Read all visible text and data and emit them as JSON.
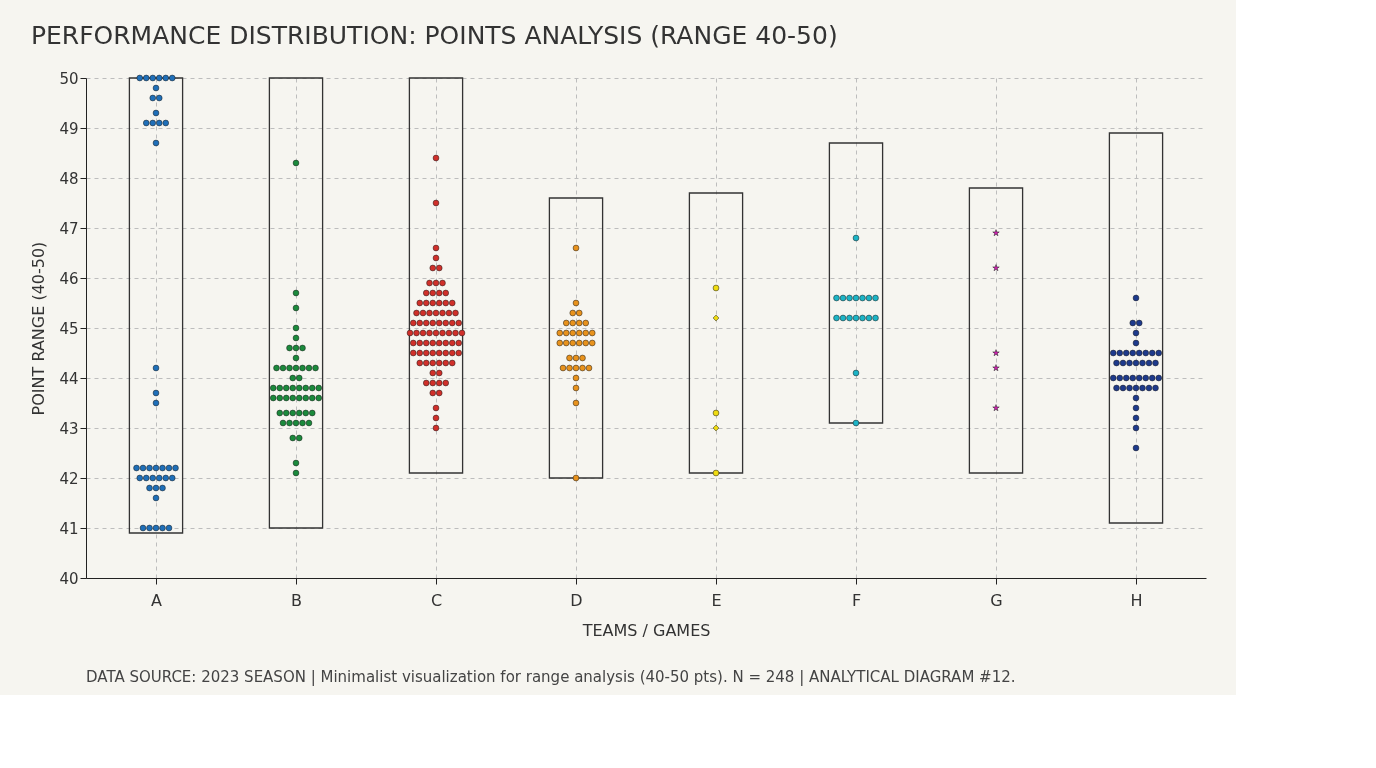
{
  "chart_data": {
    "type": "scatter",
    "title": "PERFORMANCE DISTRIBUTION: POINTS ANALYSIS (RANGE 40-50)",
    "xlabel": "TEAMS / GAMES",
    "ylabel": "POINT RANGE (40-50)",
    "categories": [
      "A",
      "B",
      "C",
      "D",
      "E",
      "F",
      "G",
      "H"
    ],
    "ylim": [
      40,
      50
    ],
    "yticks": [
      40,
      41,
      42,
      43,
      44,
      45,
      46,
      47,
      48,
      49,
      50
    ],
    "grid": true,
    "marker": "circle",
    "series": [
      {
        "type": "bar",
        "color": "#333333",
        "base": [
          40.9,
          41.0,
          42.1,
          42.0,
          42.1,
          43.1,
          42.1,
          41.1
        ],
        "values": [
          9.1,
          9.0,
          7.9,
          5.6,
          5.6,
          5.6,
          5.7,
          7.8
        ]
      },
      {
        "color": "#1f6fb8",
        "x": [
          "A",
          "A",
          "A",
          "A",
          "A",
          "A",
          "A",
          "A",
          "A",
          "A",
          "A",
          "A",
          "A",
          "A",
          "A",
          "A",
          "A",
          "A",
          "A",
          "A",
          "A",
          "A",
          "A",
          "A",
          "A",
          "A",
          "A",
          "A",
          "A",
          "A",
          "A",
          "A",
          "A",
          "A",
          "A",
          "A",
          "A",
          "A",
          "A",
          "A"
        ],
        "values": [
          50.0,
          50.0,
          50.0,
          50.0,
          50.0,
          50.0,
          49.8,
          49.6,
          49.6,
          49.3,
          49.1,
          49.1,
          49.1,
          49.1,
          48.7,
          44.2,
          43.7,
          43.5,
          42.2,
          42.2,
          42.2,
          42.2,
          42.2,
          42.2,
          42.2,
          42.0,
          42.0,
          42.0,
          42.0,
          42.0,
          42.0,
          41.8,
          41.8,
          41.8,
          41.6,
          41.0,
          41.0,
          41.0,
          41.0,
          41.0
        ]
      },
      {
        "color": "#1b8a3c",
        "x": [
          "B",
          "B",
          "B",
          "B",
          "B",
          "B",
          "B",
          "B",
          "B",
          "B",
          "B",
          "B",
          "B",
          "B",
          "B",
          "B",
          "B",
          "B",
          "B",
          "B",
          "B",
          "B",
          "B",
          "B",
          "B",
          "B",
          "B",
          "B",
          "B",
          "B",
          "B",
          "B",
          "B",
          "B",
          "B",
          "B",
          "B",
          "B",
          "B",
          "B",
          "B",
          "B",
          "B",
          "B",
          "B",
          "B",
          "B",
          "B",
          "B"
        ],
        "values": [
          48.3,
          45.7,
          45.4,
          45.0,
          44.8,
          44.6,
          44.6,
          44.6,
          44.4,
          44.2,
          44.2,
          44.2,
          44.2,
          44.2,
          44.2,
          44.2,
          44.0,
          44.0,
          43.8,
          43.8,
          43.8,
          43.8,
          43.8,
          43.8,
          43.8,
          43.8,
          43.6,
          43.6,
          43.6,
          43.6,
          43.6,
          43.6,
          43.6,
          43.6,
          43.3,
          43.3,
          43.3,
          43.3,
          43.3,
          43.3,
          43.1,
          43.1,
          43.1,
          43.1,
          43.1,
          42.8,
          42.8,
          42.3,
          42.1
        ]
      },
      {
        "color": "#d0302a",
        "x": [
          "C",
          "C",
          "C",
          "C",
          "C",
          "C",
          "C",
          "C",
          "C",
          "C",
          "C",
          "C",
          "C",
          "C",
          "C",
          "C",
          "C",
          "C",
          "C",
          "C",
          "C",
          "C",
          "C",
          "C",
          "C",
          "C",
          "C",
          "C",
          "C",
          "C",
          "C",
          "C",
          "C",
          "C",
          "C",
          "C",
          "C",
          "C",
          "C",
          "C",
          "C",
          "C",
          "C",
          "C",
          "C",
          "C",
          "C",
          "C",
          "C",
          "C",
          "C",
          "C",
          "C",
          "C",
          "C",
          "C",
          "C",
          "C",
          "C",
          "C",
          "C",
          "C",
          "C",
          "C",
          "C",
          "C",
          "C",
          "C",
          "C",
          "C",
          "C",
          "C",
          "C",
          "C",
          "C",
          "C"
        ],
        "values": [
          48.4,
          47.5,
          46.6,
          46.4,
          46.2,
          46.2,
          45.9,
          45.9,
          45.9,
          45.7,
          45.7,
          45.7,
          45.7,
          45.5,
          45.5,
          45.5,
          45.5,
          45.5,
          45.5,
          45.3,
          45.3,
          45.3,
          45.3,
          45.3,
          45.3,
          45.3,
          45.1,
          45.1,
          45.1,
          45.1,
          45.1,
          45.1,
          45.1,
          45.1,
          44.9,
          44.9,
          44.9,
          44.9,
          44.9,
          44.9,
          44.9,
          44.9,
          44.9,
          44.7,
          44.7,
          44.7,
          44.7,
          44.7,
          44.7,
          44.7,
          44.7,
          44.5,
          44.5,
          44.5,
          44.5,
          44.5,
          44.5,
          44.5,
          44.5,
          44.3,
          44.3,
          44.3,
          44.3,
          44.3,
          44.3,
          44.1,
          44.1,
          43.9,
          43.9,
          43.9,
          43.9,
          43.7,
          43.7,
          43.4,
          43.2,
          43.0
        ]
      },
      {
        "color": "#e8921c",
        "x": [
          "D",
          "D",
          "D",
          "D",
          "D",
          "D",
          "D",
          "D",
          "D",
          "D",
          "D",
          "D",
          "D",
          "D",
          "D",
          "D",
          "D",
          "D",
          "D",
          "D",
          "D",
          "D",
          "D",
          "D",
          "D",
          "D",
          "D",
          "D",
          "D",
          "D",
          "D",
          "D"
        ],
        "values": [
          46.6,
          45.5,
          45.3,
          45.3,
          45.1,
          45.1,
          45.1,
          45.1,
          44.9,
          44.9,
          44.9,
          44.9,
          44.9,
          44.9,
          44.7,
          44.7,
          44.7,
          44.7,
          44.7,
          44.7,
          44.4,
          44.4,
          44.4,
          44.2,
          44.2,
          44.2,
          44.2,
          44.2,
          44.0,
          43.8,
          43.5,
          42.0
        ]
      },
      {
        "color": "#f0dc10",
        "x": [
          "E",
          "E",
          "E"
        ],
        "values": [
          45.8,
          43.3,
          42.1
        ]
      },
      {
        "color": "#f0dc10",
        "marker": "diamond",
        "x": [
          "E",
          "E"
        ],
        "values": [
          45.2,
          43.0
        ]
      },
      {
        "color": "#1cb4c6",
        "x": [
          "F",
          "F",
          "F",
          "F",
          "F",
          "F",
          "F",
          "F",
          "F",
          "F",
          "F",
          "F",
          "F",
          "F",
          "F",
          "F",
          "F"
        ],
        "values": [
          46.8,
          45.6,
          45.6,
          45.6,
          45.6,
          45.6,
          45.6,
          45.6,
          45.2,
          45.2,
          45.2,
          45.2,
          45.2,
          45.2,
          45.2,
          44.1,
          43.1
        ]
      },
      {
        "color": "#d020b0",
        "marker": "star",
        "x": [
          "G",
          "G",
          "G",
          "G",
          "G"
        ],
        "values": [
          46.9,
          46.2,
          44.5,
          44.2,
          43.4
        ]
      },
      {
        "color": "#1e3a8c",
        "x": [
          "H",
          "H",
          "H",
          "H",
          "H",
          "H",
          "H",
          "H",
          "H",
          "H",
          "H",
          "H",
          "H",
          "H",
          "H",
          "H",
          "H",
          "H",
          "H",
          "H",
          "H",
          "H",
          "H",
          "H",
          "H",
          "H",
          "H",
          "H",
          "H",
          "H",
          "H",
          "H",
          "H",
          "H",
          "H",
          "H",
          "H",
          "H",
          "H",
          "H"
        ],
        "values": [
          45.6,
          45.1,
          45.1,
          44.9,
          44.7,
          44.5,
          44.5,
          44.5,
          44.5,
          44.5,
          44.5,
          44.5,
          44.5,
          44.3,
          44.3,
          44.3,
          44.3,
          44.3,
          44.3,
          44.3,
          44.0,
          44.0,
          44.0,
          44.0,
          44.0,
          44.0,
          44.0,
          44.0,
          43.8,
          43.8,
          43.8,
          43.8,
          43.8,
          43.8,
          43.8,
          43.6,
          43.4,
          43.2,
          43.0,
          42.6
        ]
      }
    ],
    "annotations": [
      "DATA SOURCE: 2023 SEASON | Minimalist visualization for range analysis (40-50 pts). N = 248 | ANALYTICAL DIAGRAM #12."
    ]
  }
}
